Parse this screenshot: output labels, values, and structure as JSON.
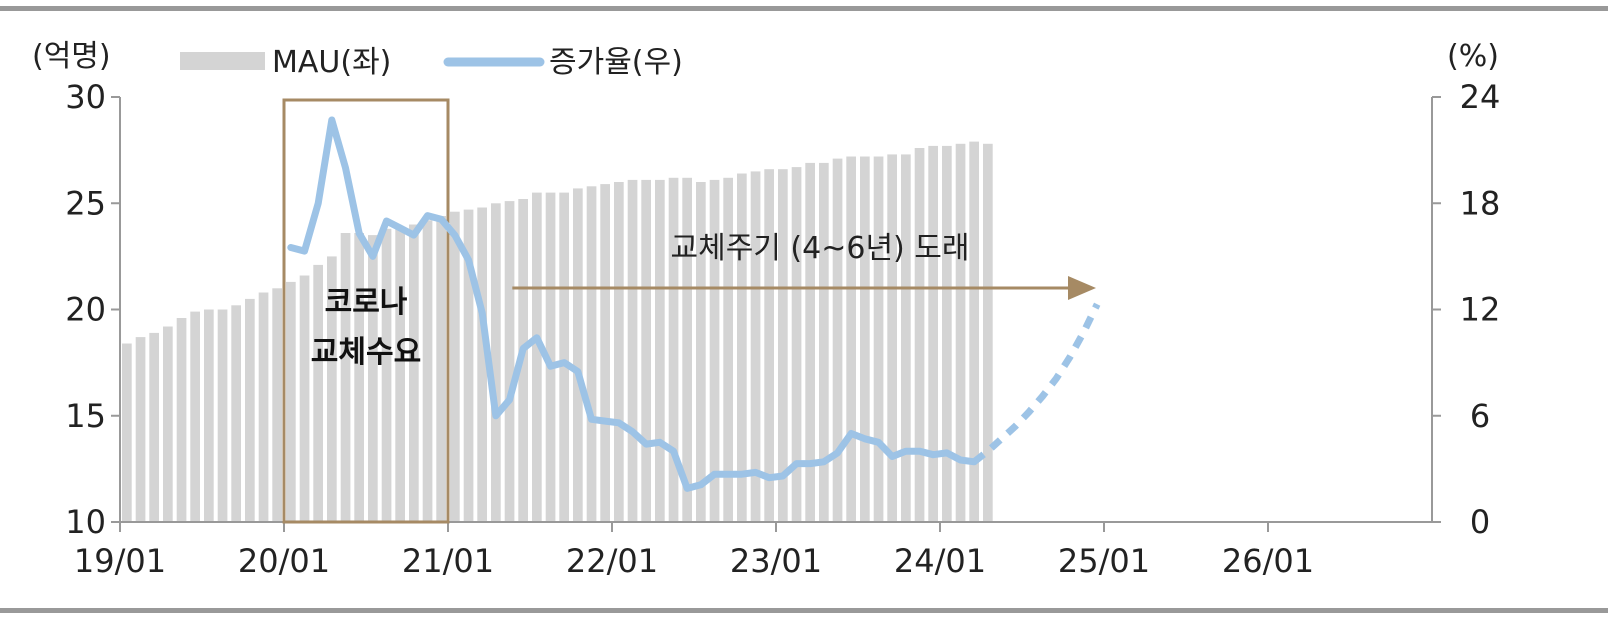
{
  "chart_data": {
    "type": "bar+line",
    "left_unit": "(억명)",
    "right_unit": "(%)",
    "legend": {
      "bars": "MAU(좌)",
      "line": "증가율(우)"
    },
    "x_ticks": [
      "19/01",
      "20/01",
      "21/01",
      "22/01",
      "23/01",
      "24/01",
      "25/01",
      "26/01"
    ],
    "y_left_ticks": [
      "30",
      "25",
      "20",
      "15",
      "10"
    ],
    "y_right_ticks": [
      "24",
      "18",
      "12",
      "6",
      "0"
    ],
    "ylim_left": [
      10,
      30
    ],
    "ylim_right": [
      0,
      24
    ],
    "colors": {
      "bars": "#d4d4d4",
      "line": "#9dc3e6",
      "box": "#a68a64",
      "arrow": "#a68a64",
      "frame": "#999999"
    },
    "annotations": {
      "box_text": [
        "코로나",
        "교체수요"
      ],
      "box_period": [
        "20/01",
        "20/12"
      ],
      "arrow_text": "교체주기 (4~6년) 도래",
      "arrow_period": [
        "21/06",
        "24/12"
      ]
    },
    "series": [
      {
        "name": "MAU(좌)",
        "kind": "bar",
        "start": "19/01",
        "values": [
          18.4,
          18.7,
          18.9,
          19.2,
          19.6,
          19.9,
          20.0,
          20.0,
          20.2,
          20.5,
          20.8,
          21.0,
          21.3,
          21.6,
          22.1,
          22.5,
          23.6,
          23.6,
          23.5,
          23.8,
          23.9,
          24.0,
          24.2,
          24.4,
          24.6,
          24.7,
          24.8,
          25.0,
          25.1,
          25.2,
          25.5,
          25.5,
          25.5,
          25.7,
          25.8,
          25.9,
          26.0,
          26.1,
          26.1,
          26.1,
          26.2,
          26.2,
          26.0,
          26.1,
          26.2,
          26.4,
          26.5,
          26.6,
          26.6,
          26.7,
          26.9,
          26.9,
          27.1,
          27.2,
          27.2,
          27.2,
          27.3,
          27.3,
          27.6,
          27.7,
          27.7,
          27.8,
          27.9,
          27.8
        ]
      },
      {
        "name": "증가율(우)",
        "kind": "line",
        "start": "20/01",
        "values": [
          15.5,
          15.3,
          18.0,
          22.7,
          20.0,
          16.3,
          15.0,
          17.0,
          16.6,
          16.2,
          17.3,
          17.1,
          16.2,
          14.8,
          11.8,
          6.0,
          6.9,
          9.8,
          10.4,
          8.8,
          9.0,
          8.5,
          5.8,
          5.7,
          5.6,
          5.1,
          4.4,
          4.5,
          4.0,
          1.9,
          2.1,
          2.7,
          2.7,
          2.7,
          2.8,
          2.5,
          2.6,
          3.3,
          3.3,
          3.4,
          3.9,
          5.0,
          4.7,
          4.5,
          3.7,
          4.0,
          4.0,
          3.8,
          3.9,
          3.5,
          3.4
        ]
      },
      {
        "name": "",
        "kind": "line-dashed",
        "start": "24/03",
        "values": [
          3.4,
          4.0,
          4.7,
          5.4,
          6.2,
          7.1,
          8.1,
          9.3,
          10.7,
          12.3
        ]
      }
    ]
  }
}
